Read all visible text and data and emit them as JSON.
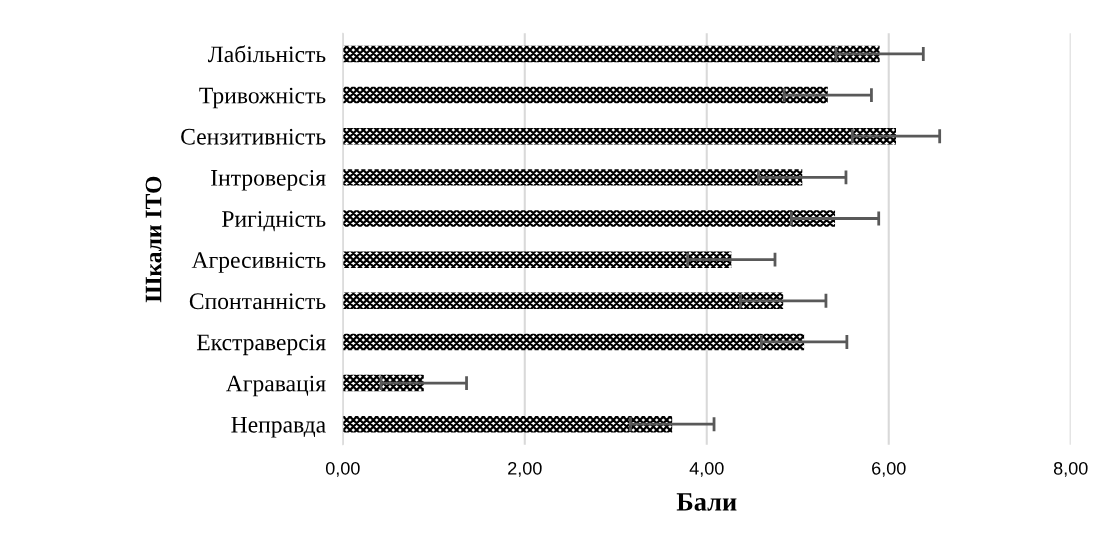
{
  "chart_data": {
    "type": "bar",
    "orientation": "horizontal",
    "xlabel": "Бали",
    "ylabel": "Шкали ІТО",
    "categories": [
      "Лабільність",
      "Тривожність",
      "Сензитивність",
      "Інтроверсія",
      "Ригідність",
      "Агресивність",
      "Спонтанність",
      "Екстраверсія",
      "Агравація",
      "Неправда"
    ],
    "values": [
      5.9,
      5.33,
      6.08,
      5.05,
      5.41,
      4.27,
      4.84,
      5.07,
      0.89,
      3.62
    ],
    "errors": [
      0.48,
      0.48,
      0.48,
      0.48,
      0.48,
      0.48,
      0.47,
      0.47,
      0.47,
      0.46
    ],
    "color": "#000000",
    "xlim": [
      0,
      8
    ],
    "xticks": [
      {
        "value": 0,
        "label": "0,00"
      },
      {
        "value": 2,
        "label": "2,00"
      },
      {
        "value": 4,
        "label": "4,00"
      },
      {
        "value": 6,
        "label": "6,00"
      },
      {
        "value": 8,
        "label": "8,00"
      }
    ],
    "grid": "x",
    "legend": false
  }
}
